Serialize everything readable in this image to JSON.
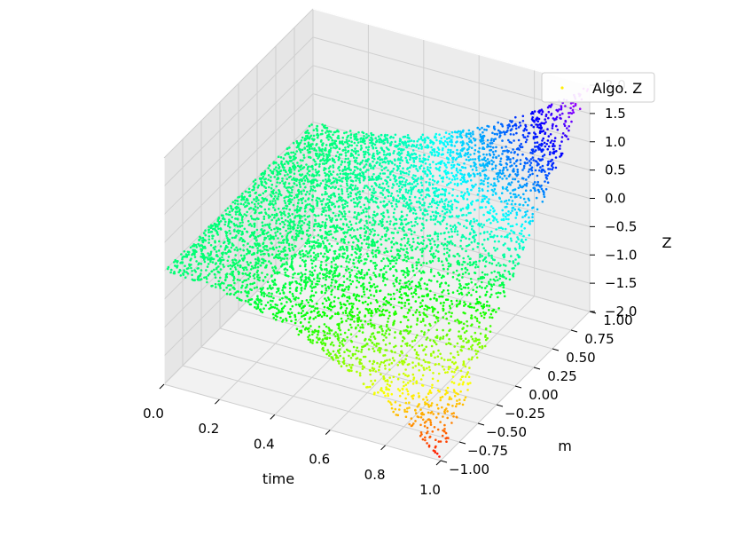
{
  "chart_data": {
    "type": "scatter",
    "projection": "3d",
    "xlabel": "time",
    "ylabel": "m",
    "zlabel": "Z",
    "xlim": [
      0.0,
      1.0
    ],
    "ylim": [
      -1.0,
      1.0
    ],
    "zlim": [
      -2.0,
      2.0
    ],
    "x_ticks": [
      "0.0",
      "0.2",
      "0.4",
      "0.6",
      "0.8",
      "1.0"
    ],
    "y_ticks": [
      "−1.00",
      "−0.75",
      "−0.50",
      "−0.25",
      "0.00",
      "0.25",
      "0.50",
      "0.75",
      "1.00"
    ],
    "z_ticks": [
      "−2.0",
      "−1.5",
      "−1.0",
      "−0.5",
      "0.0",
      "0.5",
      "1.0",
      "1.5",
      "2.0"
    ],
    "grid": true,
    "legend": {
      "placement": "top-right",
      "entries": [
        "Algo. Z"
      ]
    },
    "legend_marker_color": "#ffee00",
    "colormap": "hsv",
    "surface_relation": "Z = 2 · m · time² (approx.)",
    "series": [
      {
        "name": "Algo. Z",
        "points": 6000
      }
    ]
  }
}
